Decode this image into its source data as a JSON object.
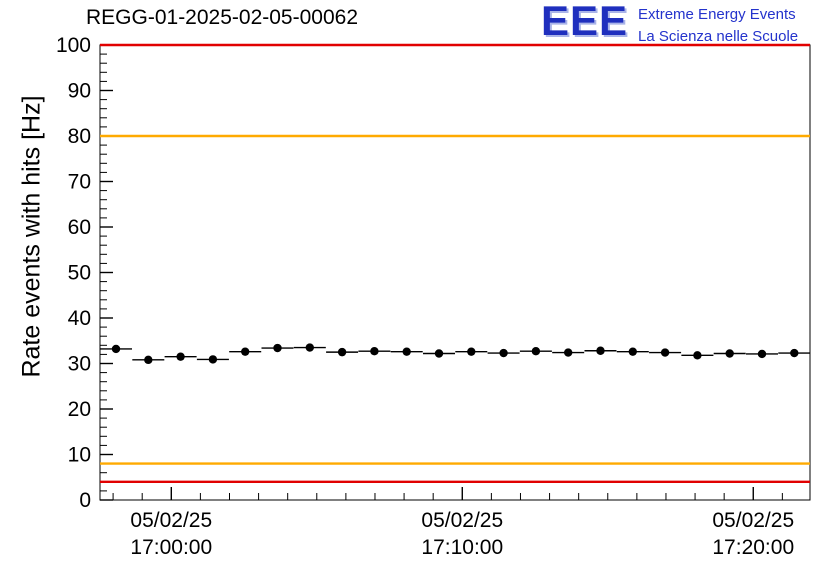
{
  "header": {
    "logo": {
      "text": "EEE",
      "line1": "Extreme Energy Events",
      "line2": "La Scienza nelle Scuole",
      "color": "#2433cc"
    }
  },
  "chart_data": {
    "type": "line",
    "title": "REGG-01-2025-02-05-00062",
    "xlabel": "",
    "ylabel": "Rate events with hits [Hz]",
    "ylim": [
      0,
      100
    ],
    "yticks": [
      0,
      10,
      20,
      30,
      40,
      50,
      60,
      70,
      80,
      90,
      100
    ],
    "y_minor_step": 2,
    "xlim_minutes": [
      -2.45,
      21.95
    ],
    "xticks_minutes": [
      0,
      10,
      20
    ],
    "xtick_labels": [
      [
        "05/02/25",
        "17:00:00"
      ],
      [
        "05/02/25",
        "17:10:00"
      ],
      [
        "05/02/25",
        "17:20:00"
      ]
    ],
    "x_minor_step": 1,
    "grid": false,
    "legend": "none",
    "marker": "filled-circle",
    "series_color": "#000000",
    "x_minutes": [
      -1.9,
      -0.79,
      0.32,
      1.43,
      2.54,
      3.65,
      4.76,
      5.87,
      6.98,
      8.09,
      9.2,
      10.31,
      11.42,
      12.53,
      13.64,
      14.75,
      15.86,
      16.97,
      18.08,
      19.19,
      20.3,
      21.41
    ],
    "values": [
      33.2,
      30.8,
      31.5,
      30.9,
      32.6,
      33.4,
      33.5,
      32.5,
      32.7,
      32.6,
      32.2,
      32.6,
      32.3,
      32.7,
      32.4,
      32.8,
      32.6,
      32.4,
      31.8,
      32.2,
      32.1,
      32.3
    ],
    "xerr_minutes": 0.55,
    "yerr_hz": 0.5,
    "reference_lines": [
      {
        "label": "upper-alarm",
        "y": 100,
        "color": "#e10000"
      },
      {
        "label": "upper-warning",
        "y": 80,
        "color": "#ffaa00"
      },
      {
        "label": "lower-warning",
        "y": 8,
        "color": "#ffaa00"
      },
      {
        "label": "lower-alarm",
        "y": 4,
        "color": "#e10000"
      }
    ]
  }
}
